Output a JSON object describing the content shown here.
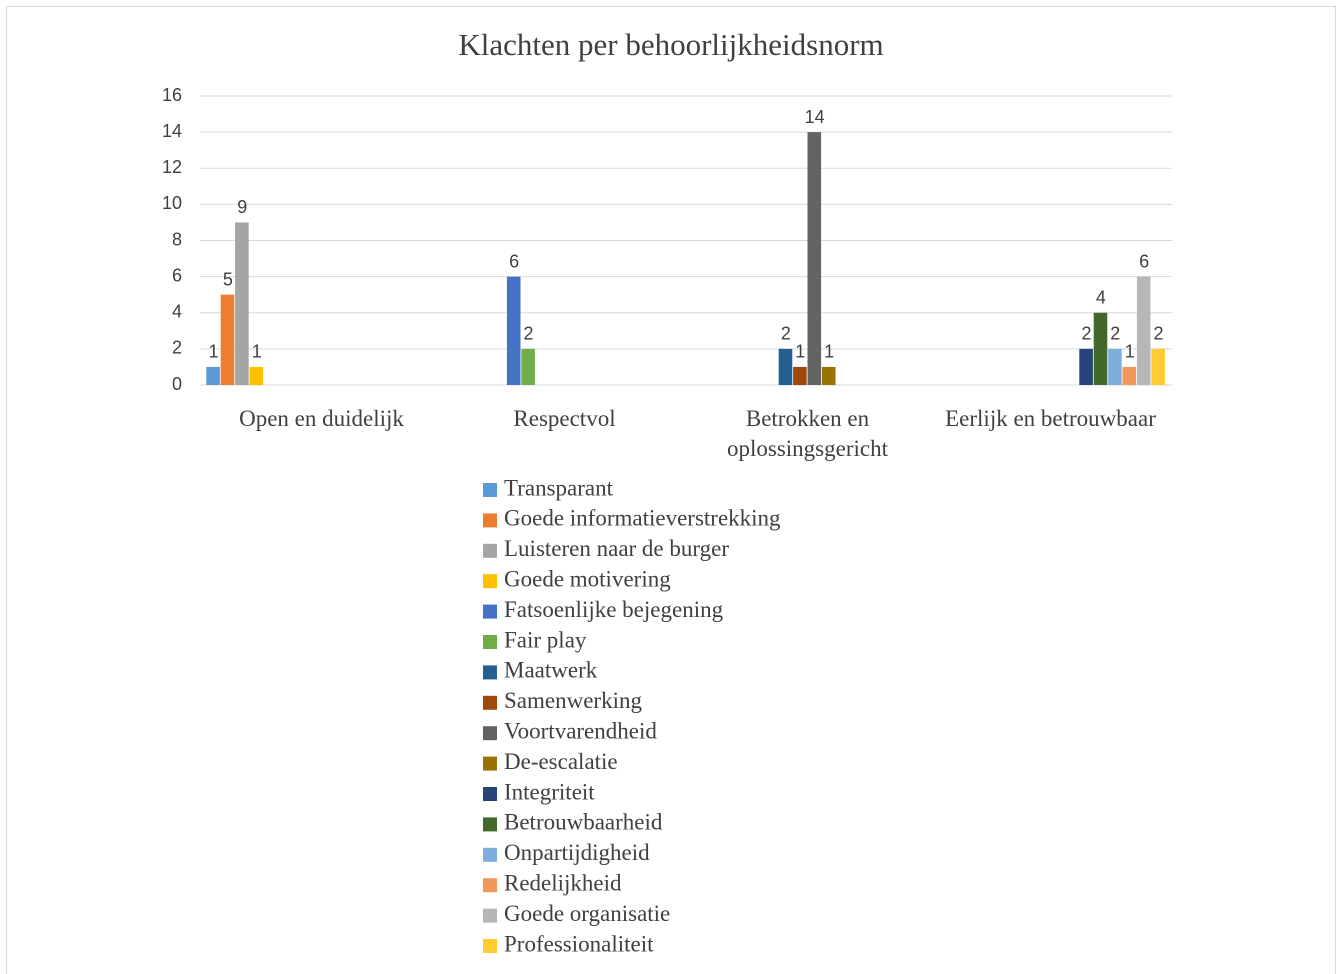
{
  "chart_data": {
    "type": "bar",
    "title": "Klachten per behoorlijkheidsnorm",
    "categories": [
      "Open en duidelijk",
      "Respectvol",
      "Betrokken en oplossingsgericht",
      "Eerlijk en betrouwbaar"
    ],
    "series": [
      {
        "name": "Transparant",
        "color": "#5b9bd5",
        "values": [
          1,
          null,
          null,
          null
        ]
      },
      {
        "name": "Goede informatieverstrekking",
        "color": "#ed7d31",
        "values": [
          5,
          null,
          null,
          null
        ]
      },
      {
        "name": "Luisteren naar de burger",
        "color": "#a5a5a5",
        "values": [
          9,
          null,
          null,
          null
        ]
      },
      {
        "name": "Goede motivering",
        "color": "#ffc000",
        "values": [
          1,
          null,
          null,
          null
        ]
      },
      {
        "name": "Fatsoenlijke bejegening",
        "color": "#4472c4",
        "values": [
          null,
          6,
          null,
          null
        ]
      },
      {
        "name": "Fair play",
        "color": "#70ad47",
        "values": [
          null,
          2,
          null,
          null
        ]
      },
      {
        "name": "Maatwerk",
        "color": "#255e91",
        "values": [
          null,
          null,
          2,
          null
        ]
      },
      {
        "name": "Samenwerking",
        "color": "#9e480e",
        "values": [
          null,
          null,
          1,
          null
        ]
      },
      {
        "name": "Voortvarendheid",
        "color": "#636363",
        "values": [
          null,
          null,
          14,
          null
        ]
      },
      {
        "name": "De-escalatie",
        "color": "#997300",
        "values": [
          null,
          null,
          1,
          null
        ]
      },
      {
        "name": "Integriteit",
        "color": "#264478",
        "values": [
          null,
          null,
          null,
          2
        ]
      },
      {
        "name": "Betrouwbaarheid",
        "color": "#43682b",
        "values": [
          null,
          null,
          null,
          4
        ]
      },
      {
        "name": "Onpartijdigheid",
        "color": "#7cafdd",
        "values": [
          null,
          null,
          null,
          2
        ]
      },
      {
        "name": "Redelijkheid",
        "color": "#f1975a",
        "values": [
          null,
          null,
          null,
          1
        ]
      },
      {
        "name": "Goede organisatie",
        "color": "#b7b7b7",
        "values": [
          null,
          null,
          null,
          6
        ]
      },
      {
        "name": "Professionaliteit",
        "color": "#ffcd33",
        "values": [
          null,
          null,
          null,
          2
        ]
      }
    ],
    "ylim": [
      0,
      16
    ],
    "yticks": [
      0,
      2,
      4,
      6,
      8,
      10,
      12,
      14,
      16
    ],
    "grid": true
  }
}
